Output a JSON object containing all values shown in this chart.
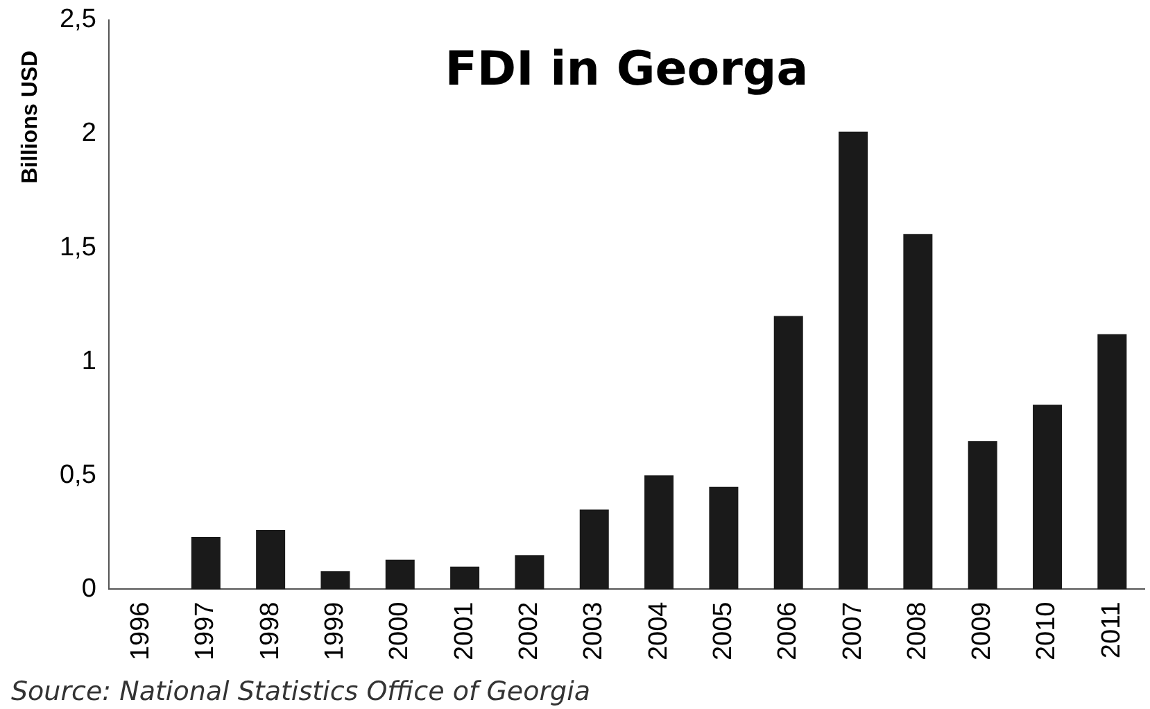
{
  "chart_data": {
    "type": "bar",
    "title": "FDI in Georga",
    "ylabel": "Billions USD",
    "categories": [
      "1996",
      "1997",
      "1998",
      "1999",
      "2000",
      "2001",
      "2002",
      "2003",
      "2004",
      "2005",
      "2006",
      "2007",
      "2008",
      "2009",
      "2010",
      "2011"
    ],
    "values": [
      0,
      0.23,
      0.26,
      0.08,
      0.13,
      0.1,
      0.15,
      0.35,
      0.5,
      0.45,
      1.2,
      2.01,
      1.56,
      0.65,
      0.81,
      1.12
    ],
    "color": "#1a1a1a",
    "ylim": [
      0,
      2.5
    ],
    "yticks": [
      0,
      {
        "value": 0.5,
        "label": "0,5"
      },
      1,
      {
        "value": 1.5,
        "label": "1,5"
      },
      2,
      {
        "value": 2.5,
        "label": "2,5"
      }
    ],
    "grid": false,
    "annotations": [
      "Source: National Statistics Office of Georgia"
    ]
  }
}
